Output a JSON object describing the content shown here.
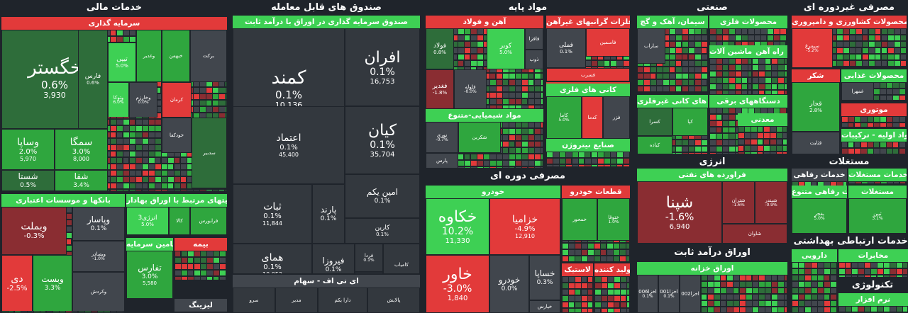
{
  "colors": {
    "background": "#1f242b",
    "neutral": "#41464d",
    "neutral_dark": "#33383e",
    "green_light": "#3ed054",
    "green": "#2fa63e",
    "green_dark": "#2e6d3a",
    "red": "#e23a3a",
    "red_dark": "#8a2d32"
  },
  "sectors": [
    {
      "key": "financial",
      "title": "خدمات مالی",
      "groups": [
        {
          "key": "investment",
          "title": "سرمایه گذاری",
          "head": "red",
          "tiles": [
            {
              "name": "خگستر",
              "pct": "0.6%",
              "val": "3,930",
              "color": "green_dark",
              "size": "xl"
            },
            {
              "name": "وساپا",
              "pct": "2.0%",
              "val": "5,970",
              "color": "green",
              "size": "m"
            },
            {
              "name": "سمگا",
              "pct": "3.0%",
              "val": "8,000",
              "color": "green",
              "size": "m"
            },
            {
              "name": "شستا",
              "pct": "0.5%",
              "color": "green_dark",
              "size": "s"
            },
            {
              "name": "شفا",
              "pct": "3.4%",
              "color": "green",
              "size": "s"
            },
            {
              "name": "فارس",
              "pct": "0.6%",
              "color": "green_dark",
              "size": "xs"
            },
            {
              "name": "تیپی",
              "pct": "5.0%",
              "color": "green_light",
              "size": "xs"
            },
            {
              "name": "وتوکا",
              "pct": "6.0%",
              "color": "green_light",
              "size": "xxs"
            },
            {
              "name": "وخارزم",
              "pct": "0.0%",
              "color": "neutral",
              "size": "xxs"
            },
            {
              "name": "وغدیر",
              "color": "green",
              "size": "xxs"
            },
            {
              "name": "خبهمن",
              "color": "green",
              "size": "xxs"
            },
            {
              "name": "برکت",
              "color": "neutral",
              "size": "xxs"
            },
            {
              "name": "کرمان",
              "color": "red",
              "size": "xxs"
            },
            {
              "name": "خودکفا",
              "color": "neutral",
              "size": "xxs"
            },
            {
              "name": "سدبیر",
              "color": "green_dark",
              "size": "xxs"
            }
          ]
        },
        {
          "key": "banks",
          "title": "بانکها و موسسات اعتباری",
          "head": "green_light",
          "tiles": [
            {
              "name": "وبملت",
              "pct": "-0.3%",
              "color": "red_dark",
              "size": "m"
            },
            {
              "name": "دی",
              "pct": "-2.5%",
              "color": "red",
              "size": "m"
            },
            {
              "name": "وبست",
              "pct": "3.3%",
              "color": "green",
              "size": "s"
            },
            {
              "name": "وپاسار",
              "pct": "0.1%",
              "color": "neutral",
              "size": "s"
            },
            {
              "name": "وبصادر",
              "pct": "-1.0%",
              "color": "neutral",
              "size": "xxs"
            },
            {
              "name": "وتجارت",
              "color": "neutral",
              "size": "xxs"
            },
            {
              "name": "وکردش",
              "color": "neutral",
              "size": "xxs"
            }
          ]
        },
        {
          "key": "valuable",
          "title": "فعالیتهای مرتبط با اوراق بهادار",
          "head": "green_light",
          "tiles": [
            {
              "name": "انرژی3",
              "pct": "5.0%",
              "color": "green_light",
              "size": "xs"
            },
            {
              "name": "کالا",
              "color": "green",
              "size": "xxs"
            },
            {
              "name": "فرابورس",
              "color": "green",
              "size": "xxs"
            }
          ]
        },
        {
          "key": "capital",
          "title": "تامین سرمایه",
          "head": "green_light",
          "tiles": [
            {
              "name": "تفارس",
              "pct": "3.0%",
              "val": "5,580",
              "color": "green",
              "size": "s"
            }
          ]
        },
        {
          "key": "insurance",
          "title": "بیمه",
          "head": "red",
          "tiles": []
        },
        {
          "key": "leasing",
          "title": "لیزینگ",
          "head": "neutral",
          "tiles": []
        }
      ]
    },
    {
      "key": "funds",
      "title": "صندوق های قابل معامله",
      "groups": [
        {
          "key": "fixed",
          "title": "صندوق سرمایه گذاری در اوراق با درآمد ثابت",
          "head": "green_light",
          "tiles": [
            {
              "name": "کمند",
              "pct": "0.1%",
              "val": "10,136",
              "color": "neutral_dark",
              "size": "xl"
            },
            {
              "name": "افران",
              "pct": "0.1%",
              "val": "16,753",
              "color": "neutral_dark",
              "size": "l"
            },
            {
              "name": "اعتماد",
              "pct": "0.1%",
              "val": "45,400",
              "color": "neutral_dark",
              "size": "m"
            },
            {
              "name": "کیان",
              "pct": "0.1%",
              "val": "35,704",
              "color": "neutral_dark",
              "size": "l"
            },
            {
              "name": "ثبات",
              "pct": "0.1%",
              "val": "11,844",
              "color": "neutral_dark",
              "size": "m"
            },
            {
              "name": "امین یکم",
              "pct": "0.1%",
              "color": "neutral_dark",
              "size": "s"
            },
            {
              "name": "پارند",
              "pct": "0.1%",
              "color": "neutral_dark",
              "size": "s"
            },
            {
              "name": "همای",
              "pct": "0.1%",
              "val": "10,052",
              "color": "neutral_dark",
              "size": "m"
            },
            {
              "name": "فیروزا",
              "pct": "0.1%",
              "color": "neutral_dark",
              "size": "s"
            },
            {
              "name": "کارین",
              "pct": "0.1%",
              "color": "neutral_dark",
              "size": "xs"
            },
            {
              "name": "فردا",
              "pct": "0.1%",
              "color": "neutral_dark",
              "size": "xxs"
            },
            {
              "name": "کارا",
              "pct": "0.1%",
              "color": "neutral_dark",
              "size": "xxs"
            },
            {
              "name": "آکورد",
              "color": "neutral_dark",
              "size": "xxs"
            },
            {
              "name": "کامیاب",
              "color": "neutral_dark",
              "size": "xxs"
            }
          ]
        },
        {
          "key": "etf",
          "title": "ای تی اف - سهام",
          "head": "neutral",
          "tiles": [
            {
              "name": "سرو",
              "color": "neutral_dark",
              "size": "xxs"
            },
            {
              "name": "مدیر",
              "color": "neutral_dark",
              "size": "xxs"
            },
            {
              "name": "دارا یکم",
              "color": "neutral_dark",
              "size": "xxs"
            },
            {
              "name": "پالایش",
              "color": "neutral_dark",
              "size": "xxs"
            }
          ]
        }
      ]
    },
    {
      "key": "basic",
      "title": "مواد پایه",
      "groups": [
        {
          "key": "steel",
          "title": "آهن و فولاد",
          "head": "red",
          "tiles": [
            {
              "name": "فولاد",
              "pct": "0.8%",
              "color": "green_dark",
              "size": "xs"
            },
            {
              "name": "کوبر",
              "pct": "5.0%",
              "color": "green_light",
              "size": "xs"
            },
            {
              "name": "فغدیر",
              "pct": "-1.8%",
              "color": "red_dark",
              "size": "xs"
            },
            {
              "name": "فلوله",
              "pct": "-0.0%",
              "color": "neutral",
              "size": "xxs"
            },
            {
              "name": "فافزا",
              "color": "neutral",
              "size": "xxs"
            },
            {
              "name": "ذوب",
              "color": "neutral",
              "size": "xxs"
            }
          ]
        },
        {
          "key": "nonferrous",
          "title": "استخراج کانه های فلزی",
          "head": "red",
          "tiles": []
        },
        {
          "key": "precious",
          "title": "فلزات گرانبهای غیرآهن",
          "head": "red",
          "tiles": [
            {
              "name": "فملی",
              "pct": "0.1%",
              "color": "neutral",
              "size": "xs"
            },
            {
              "name": "فاسمین",
              "color": "red",
              "size": "xxs"
            },
            {
              "name": "فسرب",
              "color": "red",
              "size": "xxs"
            }
          ]
        },
        {
          "key": "metalmin",
          "title": "کانی های فلزی",
          "head": "green_light",
          "tiles": [
            {
              "name": "کاما",
              "pct": "5.0%",
              "color": "green",
              "size": "xxs"
            },
            {
              "name": "کدما",
              "color": "red",
              "size": "xxs"
            },
            {
              "name": "فزر",
              "color": "neutral",
              "size": "xxs"
            }
          ]
        },
        {
          "key": "chemical",
          "title": "مواد شیمیایی-متنوع",
          "head": "green_light",
          "tiles": [
            {
              "name": "نوری",
              "pct": "-0.7%",
              "color": "neutral",
              "size": "xxs"
            },
            {
              "name": "شکربن",
              "color": "green",
              "size": "xxs"
            },
            {
              "name": "پارس",
              "color": "neutral",
              "size": "xxs"
            }
          ]
        },
        {
          "key": "nitro",
          "title": "صنایع نیتروژن",
          "head": "green_light",
          "tiles": []
        }
      ]
    },
    {
      "key": "cyclical",
      "title": "مصرفی دوره ای",
      "groups": [
        {
          "key": "auto",
          "title": "خودرو",
          "head": "green_light",
          "tiles": [
            {
              "name": "خکاوه",
              "pct": "10.2%",
              "val": "11,330",
              "color": "green_light",
              "size": "l"
            },
            {
              "name": "خزامیا",
              "pct": "-4.9%",
              "val": "12,910",
              "color": "red",
              "size": "m"
            },
            {
              "name": "خاور",
              "pct": "-3.0%",
              "val": "1,840",
              "color": "red",
              "size": "l"
            },
            {
              "name": "خودرو",
              "pct": "0.0%",
              "color": "neutral",
              "size": "s"
            },
            {
              "name": "خساپا",
              "pct": "0.3%",
              "color": "neutral",
              "size": "s"
            },
            {
              "name": "خپارس",
              "color": "neutral",
              "size": "xxs"
            }
          ]
        },
        {
          "key": "parts",
          "title": "قطعات خودرو",
          "head": "red",
          "tiles": [
            {
              "name": "خمحور",
              "color": "green",
              "size": "xxs"
            },
            {
              "name": "ختوقا",
              "pct": "1.0%",
              "color": "green",
              "size": "xxs"
            }
          ]
        },
        {
          "key": "plastic",
          "title": "لاستیک",
          "head": "red",
          "tiles": []
        },
        {
          "key": "maker",
          "title": "تولید کننده",
          "head": "red",
          "tiles": []
        }
      ]
    },
    {
      "key": "industrial",
      "title": "صنعتی",
      "groups": [
        {
          "key": "cement",
          "title": "سیمان، آهک و گچ",
          "head": "green_light",
          "tiles": [
            {
              "name": "ساراب",
              "color": "neutral",
              "size": "xxs"
            }
          ]
        },
        {
          "key": "metalprod",
          "title": "محصولات فلزی",
          "head": "green_light",
          "tiles": []
        },
        {
          "key": "machinery",
          "title": "ماشین آلات",
          "head": "green_light",
          "tiles": []
        },
        {
          "key": "railway",
          "title": "راه آهن",
          "head": "green_light",
          "tiles": []
        },
        {
          "key": "nonmetal",
          "title": "کانی های کانی غیرفلزی",
          "head": "green_light",
          "tiles": [
            {
              "name": "کسرا",
              "color": "green_dark",
              "size": "xxs"
            },
            {
              "name": "کپا",
              "color": "green",
              "size": "xxs"
            },
            {
              "name": "کیاده",
              "color": "green",
              "size": "xxs"
            }
          ]
        },
        {
          "key": "electric",
          "title": "دستگاههای برقی",
          "head": "green_light",
          "tiles": []
        },
        {
          "key": "mining",
          "title": "معدنی",
          "head": "green_light",
          "tiles": []
        }
      ]
    },
    {
      "key": "energy",
      "title": "انرژی",
      "groups": [
        {
          "key": "refinery",
          "title": "فراورده های نفتی",
          "head": "green_light",
          "tiles": [
            {
              "name": "شپنا",
              "pct": "-1.6%",
              "val": "6,940",
              "color": "red_dark",
              "size": "l"
            },
            {
              "name": "شتران",
              "pct": "-1.6%",
              "color": "red_dark",
              "size": "xxs"
            },
            {
              "name": "شبندر",
              "pct": "-0.9%",
              "color": "red_dark",
              "size": "xxs"
            },
            {
              "name": "شاوان",
              "color": "red_dark",
              "size": "xxs"
            }
          ]
        }
      ]
    },
    {
      "key": "fixedincome",
      "title": "اوراق درآمد ثابت",
      "groups": [
        {
          "key": "treasury",
          "title": "اوراق خزانه",
          "head": "green_light",
          "tiles": [
            {
              "name": "اخزا006",
              "pct": "0.1%",
              "color": "neutral",
              "size": "xxs"
            },
            {
              "name": "اخزا001",
              "pct": "0.1%",
              "color": "neutral",
              "size": "xxs"
            },
            {
              "name": "اخزا002",
              "color": "neutral",
              "size": "xxs"
            }
          ]
        }
      ]
    },
    {
      "key": "noncyclical",
      "title": "مصرفی غیردوره ای",
      "groups": [
        {
          "key": "agri",
          "title": "محصولات کشاورزی و دامپروری",
          "head": "red",
          "tiles": [
            {
              "name": "سیمرغ",
              "pct": "-5.2%",
              "color": "red",
              "size": "xxs"
            }
          ]
        },
        {
          "key": "sugar",
          "title": "شکر",
          "head": "red",
          "tiles": [
            {
              "name": "قجار",
              "pct": "2.8%",
              "color": "green",
              "size": "xs"
            },
            {
              "name": "قثابت",
              "color": "neutral",
              "size": "xxs"
            }
          ]
        },
        {
          "key": "food",
          "title": "محصولات غذایی",
          "head": "green_light",
          "tiles": [
            {
              "name": "غمهرا",
              "color": "neutral",
              "size": "xxs"
            }
          ]
        },
        {
          "key": "drink",
          "title": "نوشیدنی",
          "head": "red",
          "tiles": []
        },
        {
          "key": "motor",
          "title": "موتوری",
          "head": "red",
          "tiles": []
        },
        {
          "key": "ingredients",
          "title": "مواد اولیه - ترکیبات",
          "head": "green_light",
          "tiles": []
        }
      ]
    },
    {
      "key": "realestate",
      "title": "مستغلات",
      "groups": [
        {
          "key": "welfare",
          "title": "خدمات رفاهی",
          "head": "neutral",
          "tiles": []
        },
        {
          "key": "welfare2",
          "title": "خدمات رفاهی متنوع",
          "head": "green_light",
          "tiles": [
            {
              "name": "بفجر",
              "pct": "5.0%",
              "color": "green",
              "size": "xxs"
            }
          ]
        },
        {
          "key": "realestate2",
          "title": "مستغلات",
          "head": "green_light",
          "tiles": [
            {
              "name": "ثبین",
              "pct": "3.1%",
              "color": "green",
              "size": "xxs"
            }
          ]
        },
        {
          "key": "realestate3",
          "title": "خدمات مستغلات",
          "head": "green_light",
          "tiles": []
        }
      ]
    },
    {
      "key": "health",
      "title": "بهداشتی",
      "groups": [
        {
          "key": "pharma",
          "title": "دارویی",
          "head": "green_light",
          "tiles": []
        }
      ]
    },
    {
      "key": "telecom",
      "title": "خدمات ارتباطی",
      "groups": [
        {
          "key": "comm",
          "title": "مخابرات",
          "head": "green_light",
          "tiles": []
        }
      ]
    },
    {
      "key": "tech",
      "title": "تکنولوژی",
      "groups": [
        {
          "key": "software",
          "title": "نرم افزار",
          "head": "green_light",
          "tiles": []
        }
      ]
    }
  ]
}
